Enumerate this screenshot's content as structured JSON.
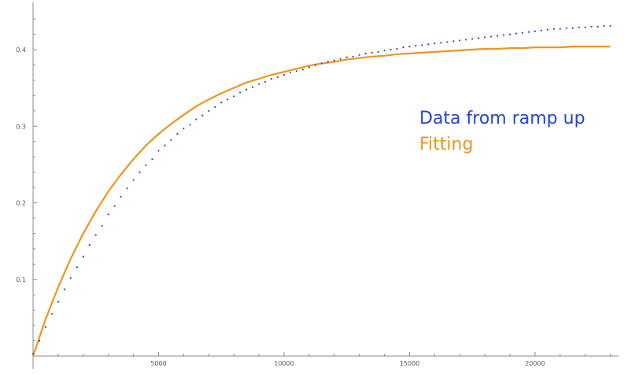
{
  "chart_data": {
    "type": "scatter",
    "title": "",
    "xlabel": "",
    "ylabel": "",
    "xlim": [
      0,
      23200
    ],
    "ylim": [
      -0.01,
      0.46
    ],
    "grid": false,
    "x_ticks": [
      {
        "value": 5000,
        "label": "5000"
      },
      {
        "value": 10000,
        "label": "10000"
      },
      {
        "value": 15000,
        "label": "15000"
      },
      {
        "value": 20000,
        "label": "20000"
      }
    ],
    "y_ticks": [
      {
        "value": 0.1,
        "label": "0.1"
      },
      {
        "value": 0.2,
        "label": "0.2"
      },
      {
        "value": 0.3,
        "label": "0.3"
      },
      {
        "value": 0.4,
        "label": "0.4"
      }
    ],
    "legend": {
      "placement": "right"
    },
    "series": [
      {
        "name": "Data from ramp up",
        "style": "dots",
        "color": "#2346d4",
        "x": [
          0,
          250,
          500,
          750,
          1000,
          1250,
          1500,
          1750,
          2000,
          2250,
          2500,
          2750,
          3000,
          3250,
          3500,
          3750,
          4000,
          4250,
          4500,
          4750,
          5000,
          5250,
          5500,
          5750,
          6000,
          6250,
          6500,
          6750,
          7000,
          7250,
          7500,
          7750,
          8000,
          8250,
          8500,
          8750,
          9000,
          9250,
          9500,
          9750,
          10000,
          10250,
          10500,
          10750,
          11000,
          11250,
          11500,
          11750,
          12000,
          12250,
          12500,
          12750,
          13000,
          13250,
          13500,
          13750,
          14000,
          14250,
          14500,
          14750,
          15000,
          15250,
          15500,
          15750,
          16000,
          16250,
          16500,
          16750,
          17000,
          17250,
          17500,
          17750,
          18000,
          18250,
          18500,
          18750,
          19000,
          19250,
          19500,
          19750,
          20000,
          20250,
          20500,
          20750,
          21000,
          21250,
          21500,
          21750,
          22000,
          22250,
          22500,
          22750,
          23000
        ],
        "y": [
          0.003,
          0.02,
          0.038,
          0.055,
          0.071,
          0.087,
          0.102,
          0.116,
          0.13,
          0.145,
          0.158,
          0.17,
          0.185,
          0.196,
          0.208,
          0.219,
          0.23,
          0.24,
          0.249,
          0.257,
          0.268,
          0.275,
          0.282,
          0.29,
          0.297,
          0.302,
          0.309,
          0.314,
          0.32,
          0.325,
          0.331,
          0.335,
          0.339,
          0.344,
          0.348,
          0.351,
          0.355,
          0.358,
          0.362,
          0.364,
          0.367,
          0.37,
          0.372,
          0.374,
          0.377,
          0.38,
          0.382,
          0.384,
          0.386,
          0.388,
          0.39,
          0.391,
          0.393,
          0.395,
          0.396,
          0.397,
          0.399,
          0.4,
          0.401,
          0.403,
          0.404,
          0.405,
          0.406,
          0.407,
          0.408,
          0.409,
          0.41,
          0.411,
          0.412,
          0.413,
          0.414,
          0.415,
          0.416,
          0.417,
          0.418,
          0.419,
          0.42,
          0.421,
          0.422,
          0.423,
          0.424,
          0.425,
          0.426,
          0.427,
          0.427,
          0.428,
          0.428,
          0.429,
          0.429,
          0.43,
          0.43,
          0.431,
          0.431
        ]
      },
      {
        "name": "Fitting",
        "style": "line",
        "color": "#f0951e",
        "x": [
          0,
          500,
          1000,
          1500,
          2000,
          2500,
          3000,
          3500,
          4000,
          4500,
          5000,
          5500,
          6000,
          6500,
          7000,
          7500,
          8000,
          8500,
          9000,
          9500,
          10000,
          10500,
          11000,
          11500,
          12000,
          12500,
          13000,
          13500,
          14000,
          14500,
          15000,
          15500,
          16000,
          16500,
          17000,
          17500,
          18000,
          18500,
          19000,
          19500,
          20000,
          20500,
          21000,
          21500,
          22000,
          22500,
          23000
        ],
        "y": [
          0.0,
          0.048,
          0.09,
          0.127,
          0.16,
          0.189,
          0.215,
          0.237,
          0.257,
          0.275,
          0.29,
          0.303,
          0.315,
          0.326,
          0.335,
          0.343,
          0.35,
          0.357,
          0.362,
          0.367,
          0.371,
          0.375,
          0.379,
          0.382,
          0.384,
          0.387,
          0.389,
          0.391,
          0.392,
          0.394,
          0.395,
          0.396,
          0.397,
          0.398,
          0.399,
          0.4,
          0.401,
          0.401,
          0.402,
          0.402,
          0.403,
          0.403,
          0.403,
          0.404,
          0.404,
          0.404,
          0.404
        ]
      }
    ]
  }
}
